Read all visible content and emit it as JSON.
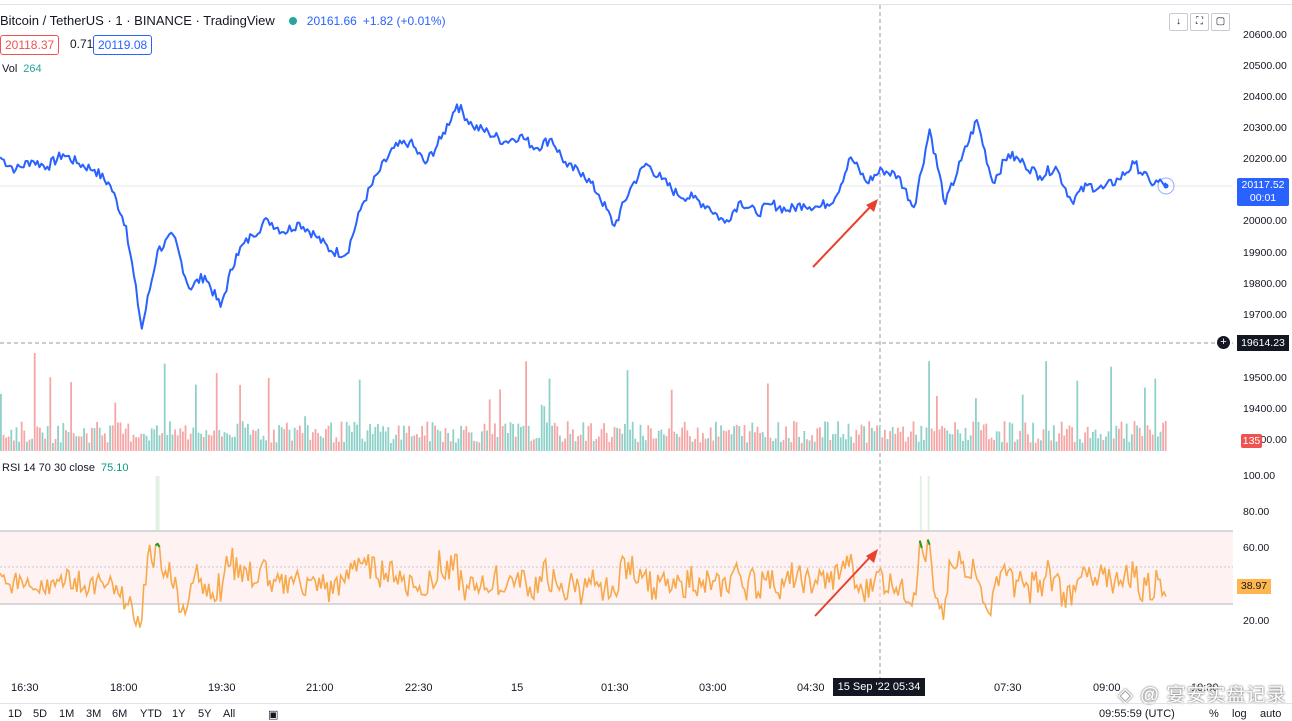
{
  "header": {
    "title": "Bitcoin / TetherUS · 1 · BINANCE · TradingView",
    "last_price": "20161.66",
    "change": "+1.82 (+0.01%)",
    "bid": "20118.37",
    "spread": "0.71",
    "ask": "20119.08",
    "volume_label": "Vol",
    "volume_value": "264"
  },
  "toolbar": {
    "download_icon": "↓",
    "fullscreen_icon": "⛶",
    "window_icon": "▢"
  },
  "price_axis": {
    "labels": [
      "20600.00",
      "20500.00",
      "20400.00",
      "20300.00",
      "20200.00",
      "20000.00",
      "19900.00",
      "19800.00",
      "19700.00",
      "19500.00",
      "19400.00",
      "19300.00"
    ],
    "current_price": "20117.52",
    "countdown": "00:01",
    "crosshair_price": "19614.23",
    "crosshair_plus": "+",
    "volume_tag": "135"
  },
  "rsi": {
    "label": "RSI 14 70 30 close",
    "value": "75.10",
    "axis_labels": [
      "100.00",
      "80.00",
      "60.00",
      "20.00"
    ],
    "current": "38.97"
  },
  "time_axis": {
    "labels": [
      "16:30",
      "18:00",
      "19:30",
      "21:00",
      "22:30",
      "15",
      "01:30",
      "03:00",
      "04:30",
      "07:30",
      "09:00",
      "10:30"
    ],
    "crosshair_time": "15 Sep '22   05:34"
  },
  "bottom_bar": {
    "ranges": [
      "1D",
      "5D",
      "1M",
      "3M",
      "6M",
      "YTD",
      "1Y",
      "5Y",
      "All"
    ],
    "calendar_icon": "▣",
    "clock": "09:55:59 (UTC)",
    "percent": "%",
    "log": "log",
    "auto": "auto"
  },
  "watermark": "◈ @ 宴安实盘记录",
  "colors": {
    "line": "#2962ff",
    "rsi": "#f7a94b",
    "rsi_high": "#1e9e1e",
    "rsi_low": "#e31b1b",
    "arrow": "#e8412c"
  },
  "chart_data": {
    "type": "line",
    "x_labels": [
      "16:30",
      "18:00",
      "19:30",
      "21:00",
      "22:30",
      "15",
      "01:30",
      "03:00",
      "04:30",
      "07:30",
      "09:00",
      "10:30"
    ],
    "series": [
      {
        "values": [
          20200,
          20160,
          20190,
          20170,
          20210,
          20180,
          20160,
          20110,
          19980,
          19650,
          19900,
          19950,
          19780,
          19820,
          19720,
          19890,
          19950,
          20000,
          19960,
          19990,
          19950,
          19900,
          19890,
          20050,
          20150,
          20230,
          20250,
          20180,
          20260,
          20370,
          20300,
          20280,
          20250,
          20270,
          20230,
          20260,
          20170,
          20150,
          20080,
          19980,
          20100,
          20180,
          20130,
          20080,
          20070,
          20040,
          19990,
          20060,
          20020,
          20050,
          20030,
          20050,
          20040,
          20070,
          20200,
          20120,
          20160,
          20140,
          20040,
          20290,
          20050,
          20190,
          20320,
          20120,
          20210,
          20180,
          20140,
          20170,
          20060,
          20110,
          20100,
          20130,
          20180,
          20120,
          20117.52
        ]
      }
    ],
    "rsi": {
      "upper": 70,
      "lower": 30,
      "ylim": [
        10,
        100
      ]
    }
  }
}
